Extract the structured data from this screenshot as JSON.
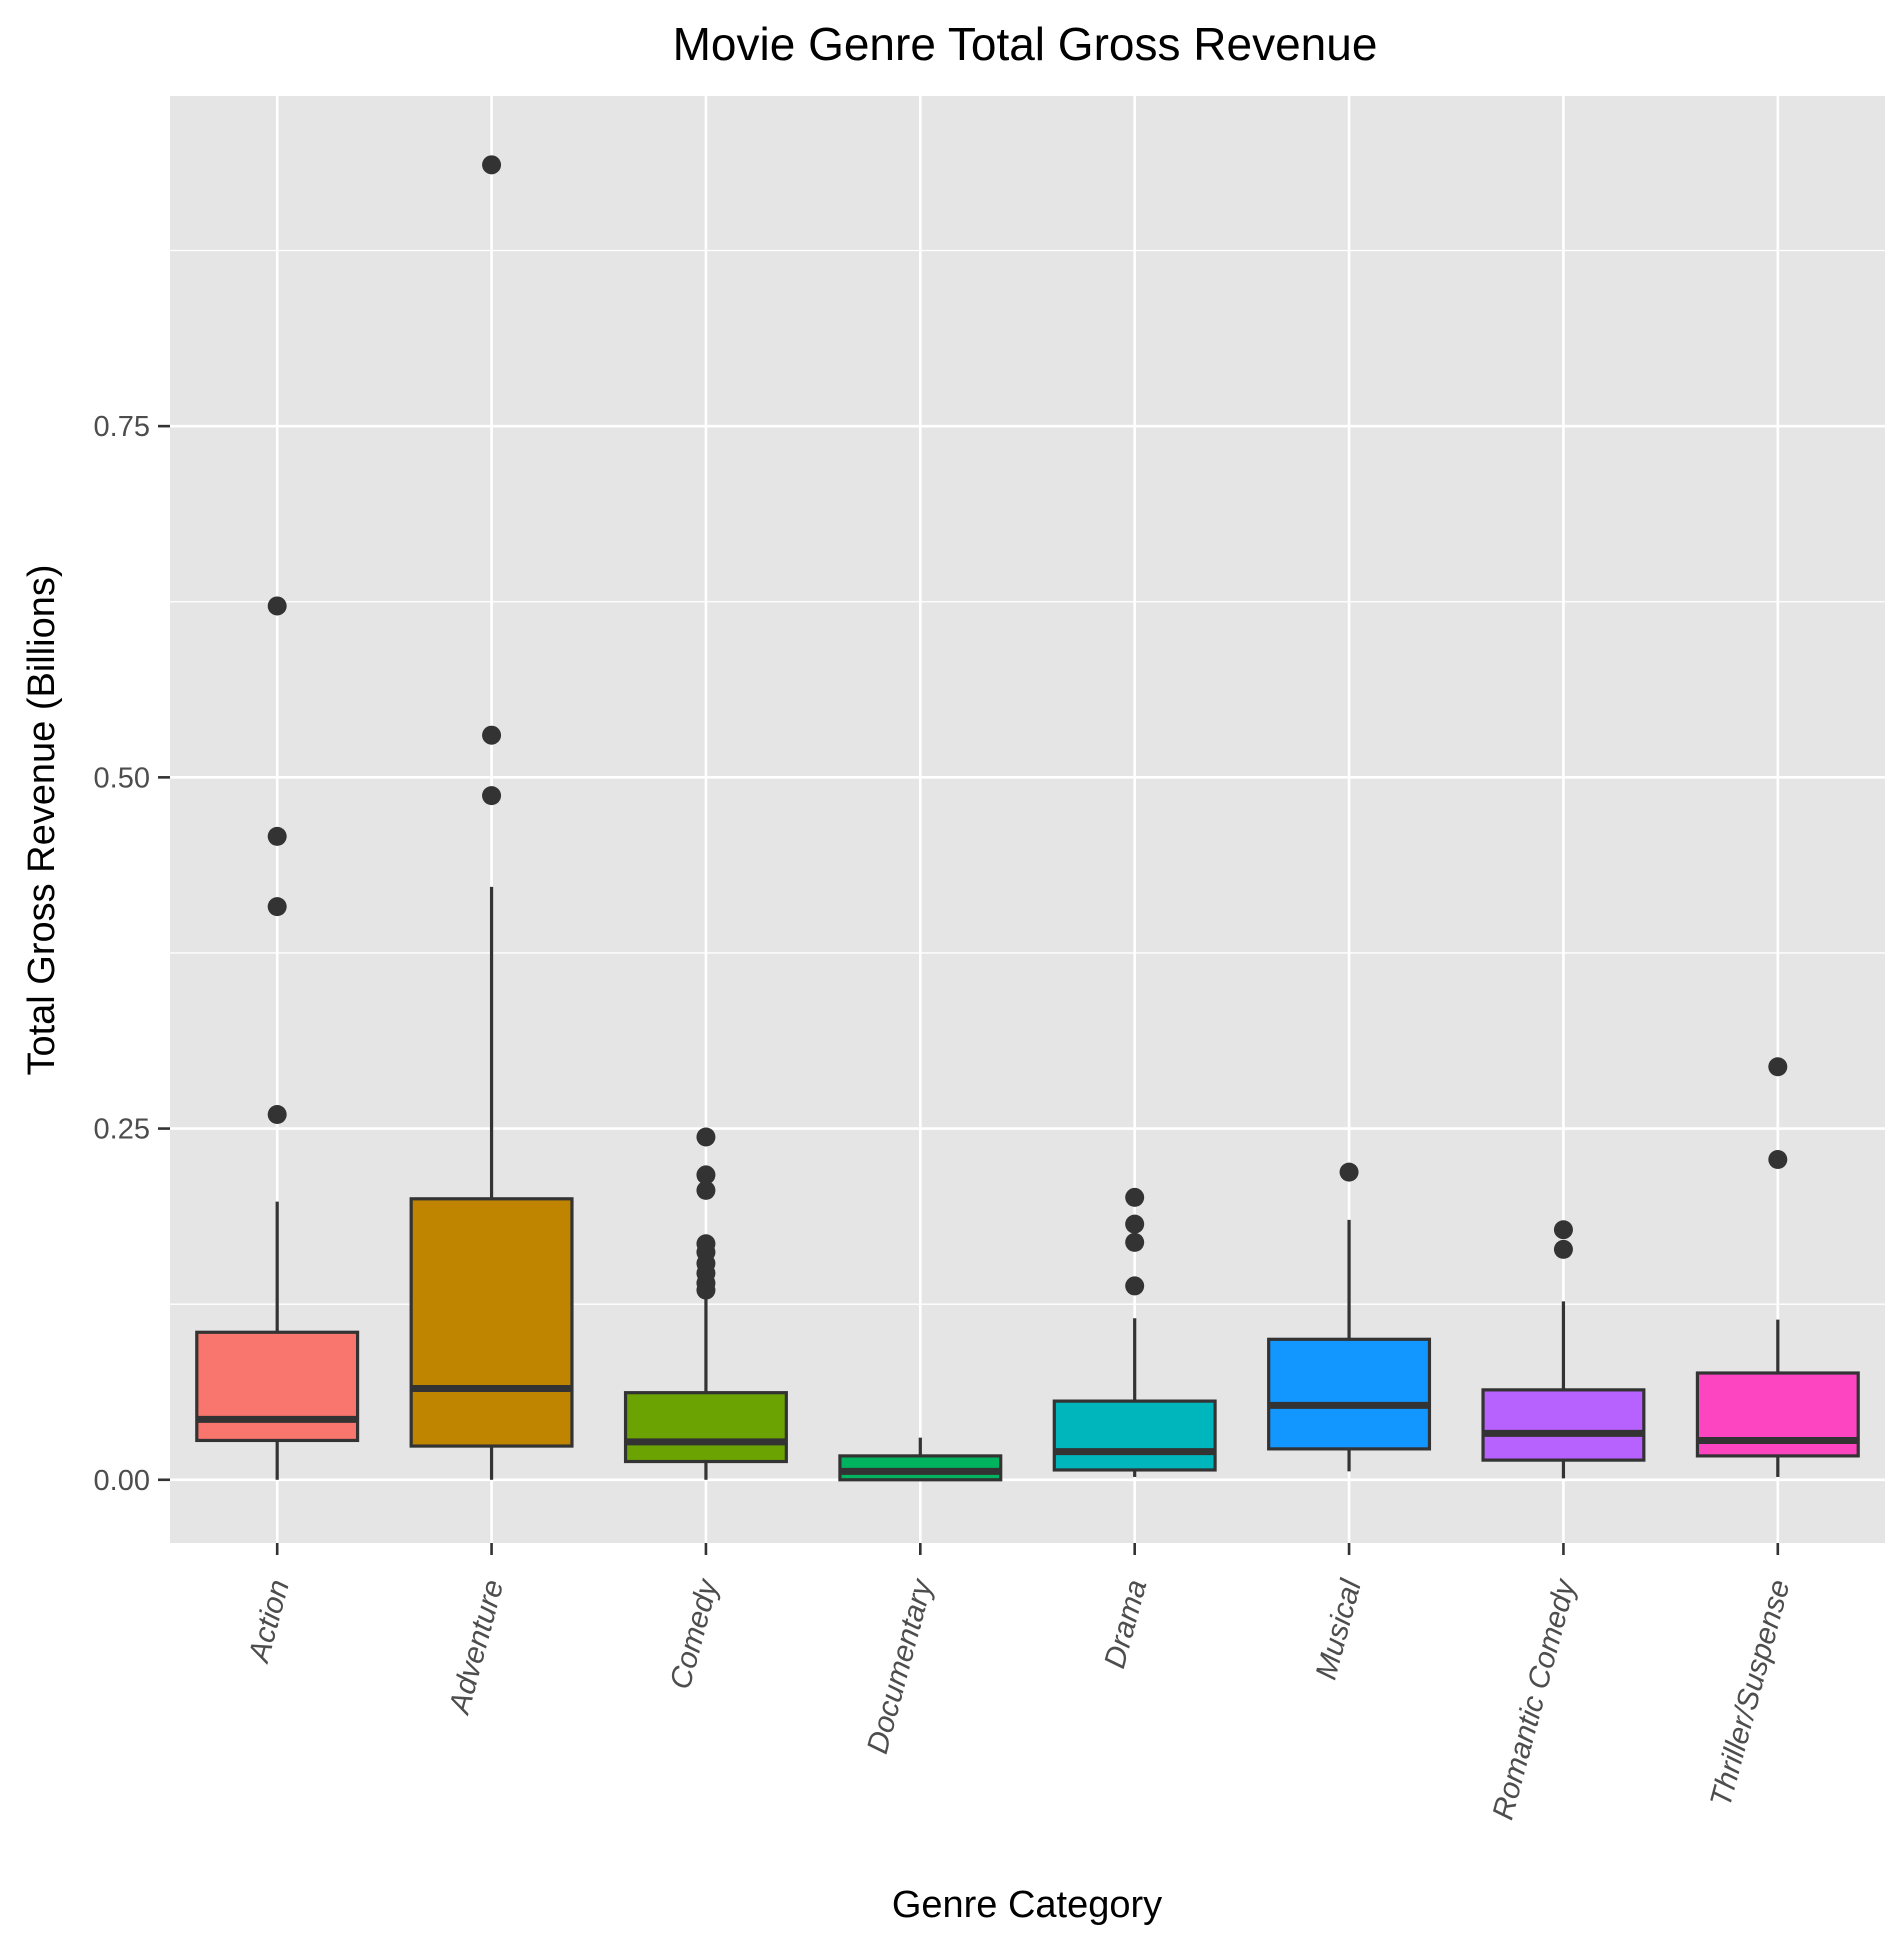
{
  "chart_data": {
    "type": "boxplot",
    "title": "Movie Genre Total Gross Revenue",
    "xlabel": "Genre Category",
    "ylabel": "Total Gross Revenue (Billions)",
    "ylim": [
      -0.045,
      0.985
    ],
    "yticks": [
      0.0,
      0.25,
      0.5,
      0.75
    ],
    "ytick_labels": [
      "0.00",
      "0.25",
      "0.50",
      "0.75"
    ],
    "grid": true,
    "legend": "none",
    "background": "#e5e5e5",
    "categories": [
      "Action",
      "Adventure",
      "Comedy",
      "Documentary",
      "Drama",
      "Musical",
      "Romantic Comedy",
      "Thriller/Suspense"
    ],
    "boxes": [
      {
        "category": "Action",
        "color": "#f8766d",
        "whisker_low": 0.0,
        "q1": 0.028,
        "median": 0.043,
        "q3": 0.105,
        "whisker_high": 0.198,
        "outliers": [
          0.26,
          0.408,
          0.458,
          0.622
        ]
      },
      {
        "category": "Adventure",
        "color": "#c08500",
        "whisker_low": 0.0,
        "q1": 0.024,
        "median": 0.065,
        "q3": 0.2,
        "whisker_high": 0.422,
        "outliers": [
          0.487,
          0.53,
          0.936
        ]
      },
      {
        "category": "Comedy",
        "color": "#6aa302",
        "whisker_low": 0.0,
        "q1": 0.013,
        "median": 0.027,
        "q3": 0.062,
        "whisker_high": 0.132,
        "outliers": [
          0.135,
          0.14,
          0.147,
          0.154,
          0.162,
          0.168,
          0.206,
          0.217,
          0.244
        ]
      },
      {
        "category": "Documentary",
        "color": "#00b35f",
        "whisker_low": 0.0,
        "q1": 0.0,
        "median": 0.006,
        "q3": 0.017,
        "whisker_high": 0.03,
        "outliers": []
      },
      {
        "category": "Drama",
        "color": "#00b6bd",
        "whisker_low": 0.002,
        "q1": 0.007,
        "median": 0.02,
        "q3": 0.056,
        "whisker_high": 0.115,
        "outliers": [
          0.138,
          0.169,
          0.182,
          0.201
        ]
      },
      {
        "category": "Musical",
        "color": "#1296ff",
        "whisker_low": 0.006,
        "q1": 0.022,
        "median": 0.053,
        "q3": 0.1,
        "whisker_high": 0.185,
        "outliers": [
          0.219
        ]
      },
      {
        "category": "Romantic Comedy",
        "color": "#b761ff",
        "whisker_low": 0.001,
        "q1": 0.014,
        "median": 0.033,
        "q3": 0.064,
        "whisker_high": 0.127,
        "outliers": [
          0.164,
          0.178
        ]
      },
      {
        "category": "Thriller/Suspense",
        "color": "#fd44c1",
        "whisker_low": 0.002,
        "q1": 0.017,
        "median": 0.028,
        "q3": 0.076,
        "whisker_high": 0.114,
        "outliers": [
          0.228,
          0.294
        ]
      }
    ]
  }
}
